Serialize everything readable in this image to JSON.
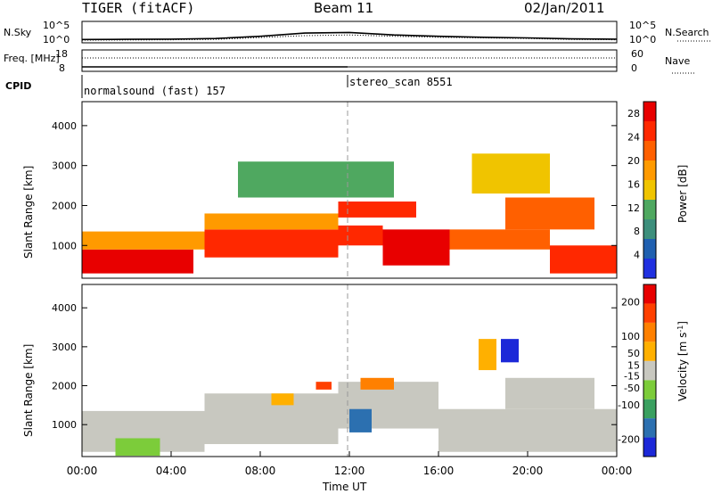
{
  "header": {
    "radar": "TIGER (fitACF)",
    "beam": "Beam 11",
    "date": "02/Jan/2011"
  },
  "colors": {
    "background": "#ffffff",
    "axis": "#000000",
    "missing": "#ffffff",
    "power_scale": [
      "#2030e0",
      "#2060b0",
      "#3d8f7c",
      "#4fa860",
      "#f0c400",
      "#ff9a00",
      "#ff6000",
      "#ff2800",
      "#e80000"
    ],
    "velocity_scale": [
      "#1c28d8",
      "#2c70b0",
      "#3aa060",
      "#7ccc3a",
      "#c8c8c0",
      "#ffb000",
      "#ff8000",
      "#ff4000",
      "#e80000"
    ]
  },
  "chart_data": [
    {
      "type": "line",
      "panel": "sky-search-noise",
      "ylabel_left": "N.Sky",
      "ylabel_right": "N.Search",
      "left_ticks": [
        "10^5",
        "10^0"
      ],
      "right_ticks": [
        "10^5",
        "10^0"
      ],
      "x": [
        0,
        2,
        4,
        6,
        8,
        10,
        12,
        14,
        16,
        18,
        20,
        22,
        24
      ],
      "series": [
        {
          "values_log10": [
            0.2,
            0.25,
            0.3,
            0.5,
            1.2,
            2.2,
            2.4,
            1.6,
            1.2,
            0.9,
            0.7,
            0.4,
            0.3
          ]
        },
        {
          "values_log10": [
            0.0,
            0.05,
            0.1,
            0.25,
            0.8,
            1.4,
            1.6,
            1.2,
            0.9,
            0.7,
            0.5,
            0.2,
            0.1
          ]
        }
      ]
    },
    {
      "type": "line",
      "panel": "frequency-nave",
      "ylabel_left": "Freq. [MHz]",
      "ylabel_right": "Nave",
      "left_ticks": [
        "18",
        "8"
      ],
      "right_ticks": [
        "60",
        "0"
      ],
      "frequency_mhz": [
        [
          0,
          9.9
        ],
        [
          12,
          9.9
        ]
      ],
      "nave": [
        [
          0,
          44
        ],
        [
          24,
          44
        ]
      ]
    },
    {
      "type": "table",
      "panel": "cpid",
      "label": "CPID",
      "segments": [
        {
          "start_ut": 0,
          "end_ut": 12,
          "name": "normalsound (fast) 157"
        },
        {
          "start_ut": 12,
          "end_ut": 24,
          "name": "stereo_scan 8551"
        }
      ]
    },
    {
      "type": "heatmap",
      "panel": "power",
      "ylabel": "Slant Range [km]",
      "yticks": [
        1000,
        2000,
        3000,
        4000
      ],
      "ylim": [
        180,
        4600
      ],
      "xlim": [
        0,
        24
      ],
      "colorbar": {
        "label": "Power [dB]",
        "ticks": [
          4,
          8,
          12,
          16,
          20,
          24,
          28
        ],
        "range": [
          0,
          30
        ]
      },
      "regions": [
        {
          "t0": 0.0,
          "t1": 5.0,
          "r0": 300,
          "r1": 900,
          "value": 27
        },
        {
          "t0": 0.0,
          "t1": 5.5,
          "r0": 900,
          "r1": 1350,
          "value": 18
        },
        {
          "t0": 5.5,
          "t1": 11.5,
          "r0": 700,
          "r1": 1400,
          "value": 24
        },
        {
          "t0": 5.5,
          "t1": 11.5,
          "r0": 1400,
          "r1": 1800,
          "value": 17
        },
        {
          "t0": 11.5,
          "t1": 15.0,
          "r0": 1700,
          "r1": 2100,
          "value": 25
        },
        {
          "t0": 11.5,
          "t1": 13.5,
          "r0": 1000,
          "r1": 1500,
          "value": 26
        },
        {
          "t0": 13.5,
          "t1": 16.5,
          "r0": 500,
          "r1": 1400,
          "value": 27
        },
        {
          "t0": 16.5,
          "t1": 21.0,
          "r0": 900,
          "r1": 1400,
          "value": 20
        },
        {
          "t0": 21.0,
          "t1": 24.0,
          "r0": 300,
          "r1": 1000,
          "value": 26
        },
        {
          "t0": 19.0,
          "t1": 23.0,
          "r0": 1400,
          "r1": 2200,
          "value": 23
        },
        {
          "t0": 7.0,
          "t1": 14.0,
          "r0": 2200,
          "r1": 3100,
          "value": 10
        },
        {
          "t0": 17.5,
          "t1": 21.0,
          "r0": 2300,
          "r1": 3300,
          "value": 14
        }
      ]
    },
    {
      "type": "heatmap",
      "panel": "velocity",
      "ylabel": "Slant Range [km]",
      "yticks": [
        1000,
        2000,
        3000,
        4000
      ],
      "ylim": [
        180,
        4600
      ],
      "xlim": [
        0,
        24
      ],
      "xticks": [
        "00:00",
        "04:00",
        "08:00",
        "12:00",
        "16:00",
        "20:00",
        "00:00"
      ],
      "xlabel": "Time UT",
      "colorbar": {
        "label": "Velocity [m s^-1]",
        "ticks": [
          200,
          100,
          50,
          15,
          -15,
          -50,
          -100,
          -200
        ],
        "range": [
          -250,
          250
        ]
      },
      "regions": [
        {
          "t0": 0.0,
          "t1": 5.5,
          "r0": 300,
          "r1": 1350,
          "value": 0
        },
        {
          "t0": 5.5,
          "t1": 11.5,
          "r0": 500,
          "r1": 1800,
          "value": 0
        },
        {
          "t0": 11.5,
          "t1": 16.0,
          "r0": 900,
          "r1": 2100,
          "value": 0
        },
        {
          "t0": 16.0,
          "t1": 24.0,
          "r0": 300,
          "r1": 1400,
          "value": 0
        },
        {
          "t0": 19.0,
          "t1": 23.0,
          "r0": 1400,
          "r1": 2200,
          "value": 0
        },
        {
          "t0": 1.5,
          "t1": 3.5,
          "r0": 200,
          "r1": 650,
          "value": -60
        },
        {
          "t0": 12.0,
          "t1": 13.0,
          "r0": 800,
          "r1": 1400,
          "value": -180
        },
        {
          "t0": 18.8,
          "t1": 19.6,
          "r0": 2600,
          "r1": 3200,
          "value": -200
        },
        {
          "t0": 17.8,
          "t1": 18.6,
          "r0": 2400,
          "r1": 3200,
          "value": 60
        },
        {
          "t0": 8.5,
          "t1": 9.5,
          "r0": 1500,
          "r1": 1800,
          "value": 40
        },
        {
          "t0": 10.5,
          "t1": 11.2,
          "r0": 1900,
          "r1": 2100,
          "value": 180
        },
        {
          "t0": 12.5,
          "t1": 14.0,
          "r0": 1900,
          "r1": 2200,
          "value": 120
        }
      ]
    }
  ]
}
